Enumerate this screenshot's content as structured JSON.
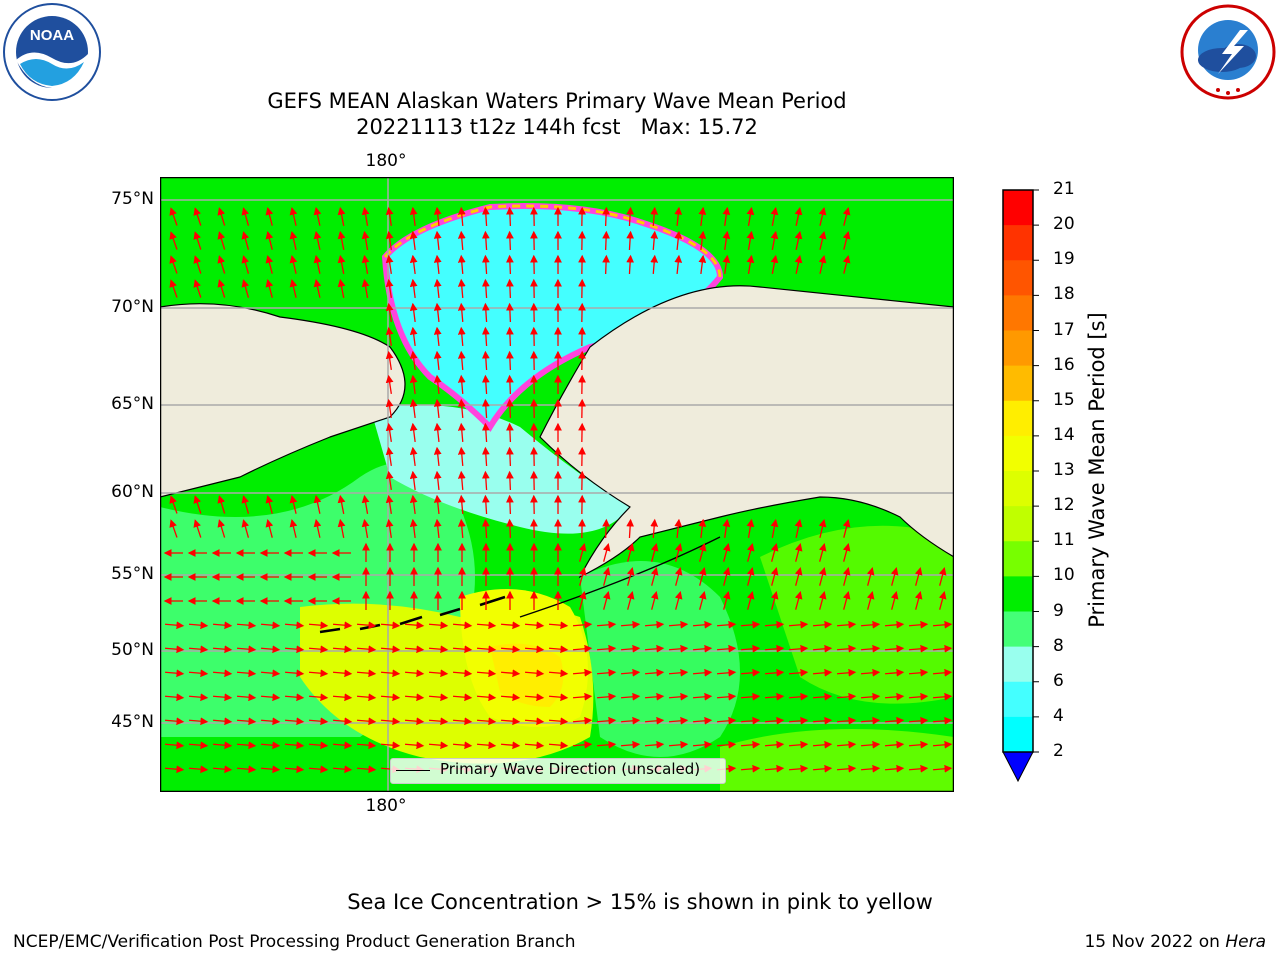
{
  "header": {
    "title_line1": "GEFS MEAN Alaskan Waters Primary Wave Mean Period",
    "title_line2": "20221113 t12z 144h fcst   Max: 15.72"
  },
  "logos": {
    "noaa": {
      "text": "NOAA",
      "ring_text": "NATIONAL OCEANIC AND ATMOSPHERIC ADMINISTRATION · U.S. DEPARTMENT OF COMMERCE"
    },
    "nws": {
      "ring_text": "NATIONAL WEATHER SERVICE"
    }
  },
  "map": {
    "lat_labels": [
      "75°N",
      "70°N",
      "65°N",
      "60°N",
      "55°N",
      "50°N",
      "45°N"
    ],
    "lon_label_top": "180°",
    "lon_label_bottom": "180°",
    "legend": "Primary Wave Direction (unscaled)",
    "land_color": "#efecdc",
    "arrow_color": "#ff0000"
  },
  "colorbar": {
    "label": "Primary Wave Mean Period [s]",
    "ticks": [
      "21",
      "20",
      "19",
      "18",
      "17",
      "16",
      "15",
      "14",
      "13",
      "12",
      "11",
      "10",
      "9",
      "8",
      "6",
      "4",
      "2"
    ],
    "colors": [
      "#ff0000",
      "#ff3300",
      "#ff5500",
      "#ff7700",
      "#ff9900",
      "#ffbb00",
      "#ffee00",
      "#f2ff00",
      "#ddff00",
      "#c0ff00",
      "#77ff00",
      "#00ee00",
      "#44ff77",
      "#99ffee",
      "#44ffff",
      "#00ffff",
      "#00ddff",
      "#0077ff",
      "#0000ff"
    ]
  },
  "note": "Sea Ice Concentration > 15% is shown in pink to yellow",
  "footer": {
    "left": "NCEP/EMC/Verification Post Processing Product Generation Branch",
    "right_date": "15 Nov 2022 on ",
    "right_host": "Hera"
  }
}
